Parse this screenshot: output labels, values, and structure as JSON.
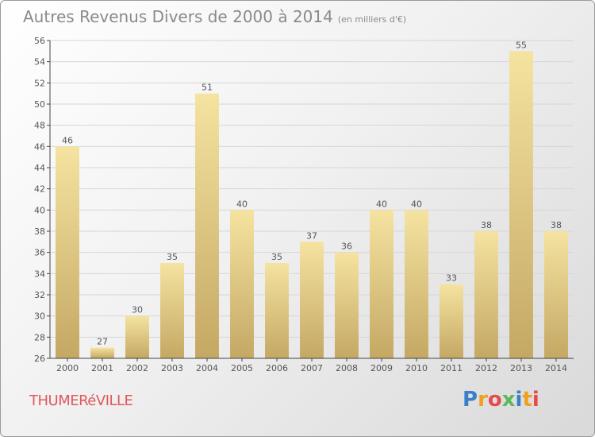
{
  "title": "Autres Revenus Divers de 2000 à 2014",
  "unit_note": "(en milliers d'€)",
  "town": "THUMERéVILLE",
  "logo": {
    "text": "Proxiti",
    "letter_colors": [
      "#3a7fc9",
      "#f0a020",
      "#e84a4a",
      "#5cb85c",
      "#3a7fc9",
      "#f0a020",
      "#e84a4a"
    ]
  },
  "colors": {
    "bar_top": "#f5e3a0",
    "bar_bottom": "#c4a864",
    "axis": "#444444",
    "grid": "#d6d6d6",
    "text": "#555555",
    "town": "#e0585c"
  },
  "chart_data": {
    "type": "bar",
    "title": "Autres Revenus Divers de 2000 à 2014",
    "xlabel": "",
    "ylabel": "",
    "categories": [
      "2000",
      "2001",
      "2002",
      "2003",
      "2004",
      "2005",
      "2006",
      "2007",
      "2008",
      "2009",
      "2010",
      "2011",
      "2012",
      "2013",
      "2014"
    ],
    "values": [
      46,
      27,
      30,
      35,
      51,
      40,
      35,
      37,
      36,
      40,
      40,
      33,
      38,
      55,
      38
    ],
    "ylim": [
      26,
      56
    ],
    "yticks": [
      26,
      28,
      30,
      32,
      34,
      36,
      38,
      40,
      42,
      44,
      46,
      48,
      50,
      52,
      54,
      56
    ],
    "grid": true,
    "data_labels": true
  }
}
